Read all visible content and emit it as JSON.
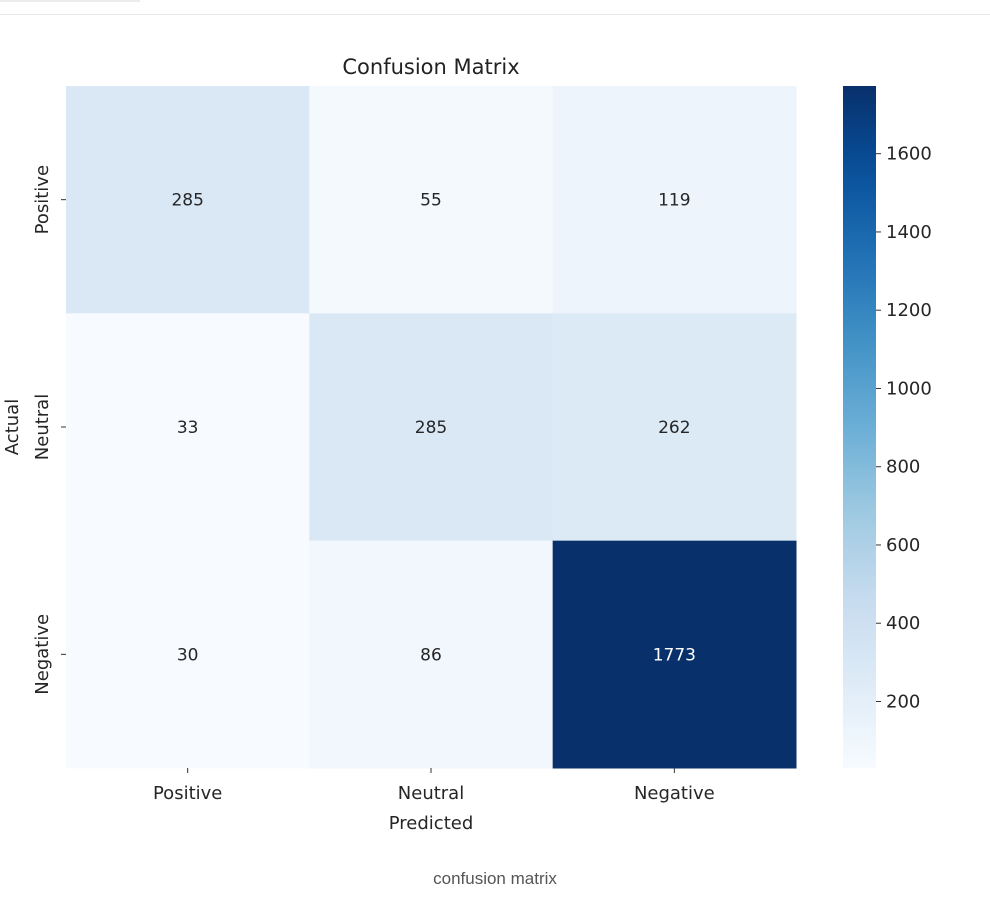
{
  "chart_data": {
    "type": "heatmap",
    "title": "Confusion Matrix",
    "xlabel": "Predicted",
    "ylabel": "Actual",
    "x_categories": [
      "Positive",
      "Neutral",
      "Negative"
    ],
    "y_categories": [
      "Positive",
      "Neutral",
      "Negative"
    ],
    "values": [
      [
        285,
        55,
        119
      ],
      [
        33,
        285,
        262
      ],
      [
        30,
        86,
        1773
      ]
    ],
    "colormap": "Blues",
    "colorbar": {
      "range": [
        30,
        1773
      ],
      "ticks": [
        200,
        400,
        600,
        800,
        1000,
        1200,
        1400,
        1600
      ]
    }
  },
  "caption": "confusion matrix"
}
